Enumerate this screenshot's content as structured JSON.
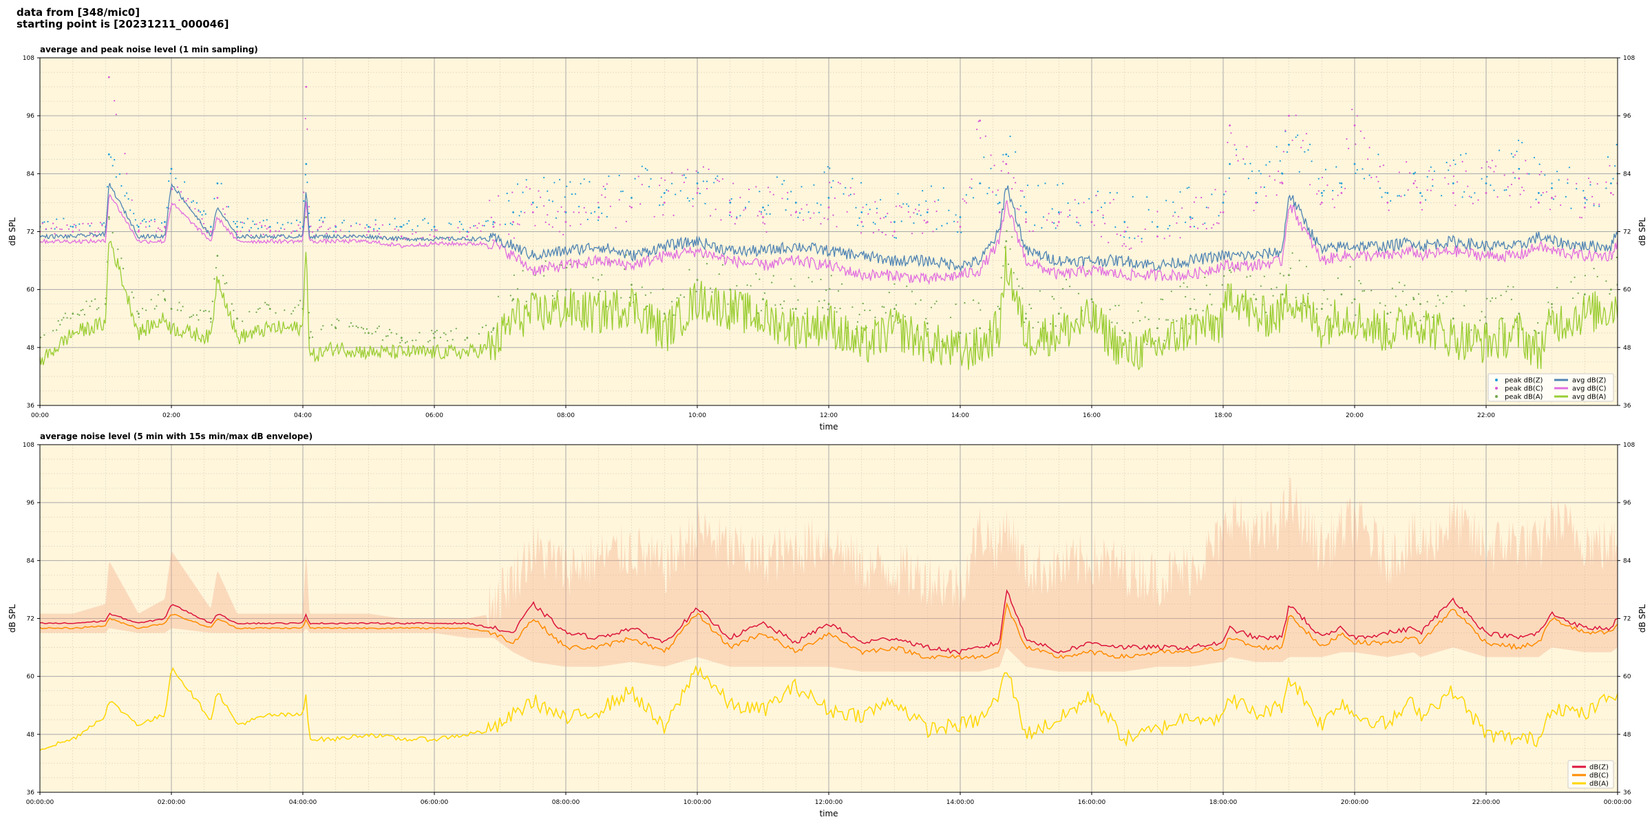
{
  "header": {
    "line1": "data from [348/mic0]",
    "line2": "starting point is [20231211_000046]"
  },
  "colors": {
    "background": "#fff6dc",
    "grid": "#a8a8a8",
    "peak_z": "#1f9bd8",
    "peak_c": "#d957d6",
    "peak_a": "#6fa84a",
    "avg_z": "#4f84b4",
    "avg_c": "#e06ee0",
    "avg_a": "#9acd32",
    "dbz": "#dc143c",
    "dbc": "#ff8c00",
    "dba": "#ffd700",
    "envelope": "#f4a582"
  },
  "chart_data": [
    {
      "type": "line",
      "title": "average and peak noise level (1 min sampling)",
      "xlabel": "time",
      "ylabel": "dB SPL",
      "ylabel_right": "dB SPL",
      "xlim": [
        0,
        24
      ],
      "ylim": [
        36,
        108
      ],
      "y_ticks": [
        36,
        48,
        60,
        72,
        84,
        96,
        108
      ],
      "x_ticks": [
        0,
        2,
        4,
        6,
        8,
        10,
        12,
        14,
        16,
        18,
        20,
        22
      ],
      "x_tick_labels": [
        "00:00",
        "02:00",
        "04:00",
        "06:00",
        "08:00",
        "10:00",
        "12:00",
        "14:00",
        "16:00",
        "18:00",
        "20:00",
        "22:00"
      ],
      "grid": true,
      "legend_position": "lower-right",
      "legend": [
        "peak dB(Z)",
        "peak dB(C)",
        "peak dB(A)",
        "avg dB(Z)",
        "avg dB(C)",
        "avg dB(A)"
      ],
      "x": [
        0,
        0.5,
        1,
        1.05,
        1.5,
        1.9,
        2.0,
        2.6,
        2.7,
        3,
        3.5,
        4,
        4.05,
        4.1,
        4.5,
        5,
        5.5,
        6,
        6.5,
        6.9,
        7.2,
        7.5,
        8,
        8.5,
        9,
        9.5,
        10,
        10.5,
        11,
        11.5,
        12,
        12.5,
        13,
        13.5,
        14,
        14.3,
        14.6,
        14.7,
        15,
        15.5,
        16,
        16.5,
        17,
        17.5,
        18,
        18.1,
        18.5,
        18.9,
        19,
        19.5,
        19.8,
        20,
        20.5,
        20.9,
        21,
        21.5,
        22,
        22.5,
        22.8,
        23,
        23.5,
        23.9,
        24
      ],
      "series": [
        {
          "name": "avg dB(Z)",
          "values": [
            71,
            71,
            71.5,
            82,
            71,
            71,
            82,
            71,
            77,
            71,
            71,
            71,
            81,
            71,
            71,
            71,
            70.5,
            70.5,
            70.5,
            70.5,
            69,
            67,
            68,
            69,
            67,
            69,
            70,
            68,
            68,
            69,
            68,
            67,
            66,
            66,
            65,
            66,
            72,
            82,
            68,
            66,
            66,
            66,
            65,
            66,
            67,
            67,
            67,
            68,
            80,
            68,
            69,
            69,
            69,
            70,
            69,
            70,
            69,
            69,
            71,
            70,
            69,
            69,
            72
          ]
        },
        {
          "name": "avg dB(C)",
          "values": [
            70,
            70,
            70,
            80,
            70,
            70,
            78,
            70,
            75,
            70,
            70,
            70,
            79,
            70,
            70,
            70,
            69,
            69.5,
            69.5,
            69.5,
            67,
            64,
            65,
            66,
            65,
            67,
            68,
            66,
            65,
            66,
            65,
            63,
            63,
            62,
            63,
            64,
            70,
            78,
            66,
            63,
            64,
            63,
            63,
            63,
            65,
            65,
            65,
            66,
            78,
            66,
            67,
            67,
            67,
            68,
            67,
            68,
            67,
            67,
            69,
            68,
            67,
            67,
            70
          ]
        },
        {
          "name": "avg dB(A)",
          "values": [
            45,
            51,
            53,
            71,
            51,
            54,
            52,
            50,
            63,
            50,
            52,
            52,
            71,
            46,
            48,
            47,
            47,
            47,
            47,
            48,
            54,
            55,
            56,
            55,
            57,
            51,
            58,
            56,
            54,
            52,
            53,
            48,
            52,
            49,
            47,
            48,
            52,
            66,
            50,
            51,
            54,
            47,
            48,
            52,
            53,
            60,
            54,
            55,
            59,
            52,
            55,
            54,
            51,
            54,
            53,
            50,
            49,
            51,
            47,
            53,
            55,
            56,
            57
          ]
        },
        {
          "name": "peak dB(Z)",
          "values": [
            73,
            73,
            73,
            88,
            73,
            74,
            85,
            73,
            82,
            73,
            73,
            73,
            86,
            73,
            73,
            73,
            73,
            73,
            72,
            74,
            76,
            78,
            76,
            77,
            79,
            80,
            82,
            78,
            77,
            78,
            79,
            76,
            74,
            76,
            75,
            82,
            78,
            88,
            76,
            76,
            76,
            74,
            73,
            75,
            78,
            86,
            80,
            84,
            90,
            80,
            82,
            86,
            80,
            84,
            80,
            82,
            82,
            85,
            80,
            81,
            79,
            82,
            84
          ]
        },
        {
          "name": "peak dB(C)",
          "values": [
            72,
            72,
            72,
            104,
            72,
            73,
            81,
            72,
            79,
            72,
            72,
            72,
            102,
            72,
            72,
            72,
            71,
            71,
            71,
            73,
            74,
            76,
            74,
            75,
            77,
            78,
            80,
            76,
            75,
            76,
            77,
            74,
            72,
            74,
            73,
            95,
            76,
            86,
            74,
            74,
            74,
            72,
            71,
            73,
            76,
            94,
            78,
            82,
            96,
            78,
            80,
            94,
            78,
            82,
            78,
            80,
            80,
            83,
            78,
            79,
            77,
            80,
            82
          ]
        },
        {
          "name": "peak dB(A)",
          "values": [
            48,
            55,
            57,
            75,
            55,
            58,
            56,
            54,
            67,
            54,
            56,
            56,
            75,
            50,
            52,
            51,
            50,
            50,
            50,
            52,
            58,
            59,
            60,
            59,
            61,
            55,
            62,
            60,
            58,
            56,
            57,
            52,
            56,
            53,
            51,
            52,
            56,
            70,
            54,
            55,
            58,
            51,
            52,
            56,
            57,
            64,
            58,
            59,
            63,
            56,
            59,
            58,
            55,
            58,
            57,
            54,
            53,
            55,
            51,
            57,
            59,
            60,
            61
          ]
        }
      ]
    },
    {
      "type": "line",
      "title": "average noise level (5 min with 15s min/max dB envelope)",
      "xlabel": "time",
      "ylabel": "dB SPL",
      "ylabel_right": "dB SPL",
      "xlim": [
        0,
        24
      ],
      "ylim": [
        36,
        108
      ],
      "y_ticks": [
        36,
        48,
        60,
        72,
        84,
        96,
        108
      ],
      "x_ticks": [
        0,
        2,
        4,
        6,
        8,
        10,
        12,
        14,
        16,
        18,
        20,
        22,
        24
      ],
      "x_tick_labels": [
        "00:00:00",
        "02:00:00",
        "04:00:00",
        "06:00:00",
        "08:00:00",
        "10:00:00",
        "12:00:00",
        "14:00:00",
        "16:00:00",
        "18:00:00",
        "20:00:00",
        "22:00:00",
        "00:00:00"
      ],
      "grid": true,
      "legend_position": "lower-right",
      "legend": [
        "dB(Z)",
        "dB(C)",
        "dB(A)"
      ],
      "x": [
        0,
        0.5,
        1,
        1.05,
        1.5,
        1.9,
        2.0,
        2.6,
        2.7,
        3,
        3.5,
        4,
        4.05,
        4.1,
        4.5,
        5,
        5.5,
        6,
        6.5,
        6.9,
        7.2,
        7.5,
        8,
        8.5,
        9,
        9.5,
        10,
        10.5,
        11,
        11.5,
        12,
        12.5,
        13,
        13.5,
        14,
        14.3,
        14.6,
        14.7,
        15,
        15.5,
        16,
        16.5,
        17,
        17.5,
        18,
        18.1,
        18.5,
        18.9,
        19,
        19.5,
        19.8,
        20,
        20.5,
        20.9,
        21,
        21.5,
        22,
        22.5,
        22.8,
        23,
        23.5,
        23.9,
        24
      ],
      "series": [
        {
          "name": "dB(Z)",
          "values": [
            71,
            71,
            71.5,
            73,
            71,
            72,
            75,
            71,
            73,
            71,
            71,
            71,
            73,
            71,
            71,
            71,
            71,
            71,
            71,
            70,
            69,
            75,
            69,
            68,
            70,
            67,
            74,
            68,
            71,
            67,
            71,
            67,
            68,
            66,
            65,
            66,
            67,
            78,
            68,
            65,
            67,
            66,
            66,
            66,
            67,
            70,
            68,
            68,
            75,
            68,
            70,
            68,
            69,
            70,
            69,
            76,
            69,
            68,
            69,
            73,
            70,
            70,
            72
          ]
        },
        {
          "name": "dB(C)",
          "values": [
            70,
            70,
            70.5,
            72,
            70,
            71,
            73,
            70,
            72,
            70,
            70,
            70,
            72,
            70,
            70,
            70,
            70,
            70,
            70,
            69,
            67,
            72,
            66,
            66,
            68,
            65,
            73,
            66,
            69,
            65,
            69,
            65,
            66,
            64,
            64,
            64,
            65,
            75,
            66,
            64,
            65,
            64,
            65,
            65,
            66,
            68,
            66,
            66,
            73,
            66,
            69,
            67,
            67,
            68,
            67,
            74,
            67,
            66,
            67,
            72,
            69,
            69,
            71
          ]
        },
        {
          "name": "dB(A)",
          "values": [
            45,
            47,
            52,
            55,
            50,
            52,
            62,
            51,
            57,
            50,
            52,
            52,
            57,
            47,
            47,
            48,
            47,
            47,
            48,
            49,
            52,
            55,
            51,
            53,
            57,
            49,
            62,
            54,
            53,
            58,
            53,
            52,
            55,
            49,
            50,
            51,
            56,
            62,
            48,
            51,
            56,
            47,
            49,
            52,
            51,
            56,
            52,
            54,
            60,
            50,
            55,
            52,
            50,
            55,
            52,
            57,
            48,
            47,
            47,
            54,
            52,
            56,
            57
          ]
        },
        {
          "name": "env max",
          "values": [
            73,
            73,
            75,
            84,
            73,
            76,
            86,
            74,
            82,
            73,
            73,
            73,
            86,
            73,
            73,
            73,
            72,
            72,
            72,
            73,
            78,
            84,
            80,
            82,
            84,
            80,
            88,
            84,
            82,
            84,
            86,
            80,
            80,
            78,
            76,
            88,
            84,
            90,
            80,
            80,
            82,
            80,
            78,
            80,
            86,
            92,
            86,
            90,
            94,
            84,
            88,
            90,
            82,
            86,
            84,
            90,
            84,
            86,
            84,
            90,
            86,
            84,
            86
          ]
        },
        {
          "name": "env min",
          "values": [
            69,
            69,
            69,
            70,
            69,
            69,
            70,
            69,
            69,
            69,
            69,
            69,
            70,
            69,
            69,
            69,
            69,
            69,
            68,
            68,
            65,
            63,
            62,
            62,
            63,
            62,
            64,
            62,
            62,
            62,
            62,
            61,
            61,
            61,
            61,
            61,
            62,
            66,
            62,
            61,
            61,
            61,
            62,
            62,
            63,
            64,
            63,
            63,
            64,
            64,
            65,
            65,
            64,
            65,
            64,
            66,
            64,
            64,
            64,
            66,
            65,
            65,
            66
          ]
        }
      ]
    }
  ]
}
